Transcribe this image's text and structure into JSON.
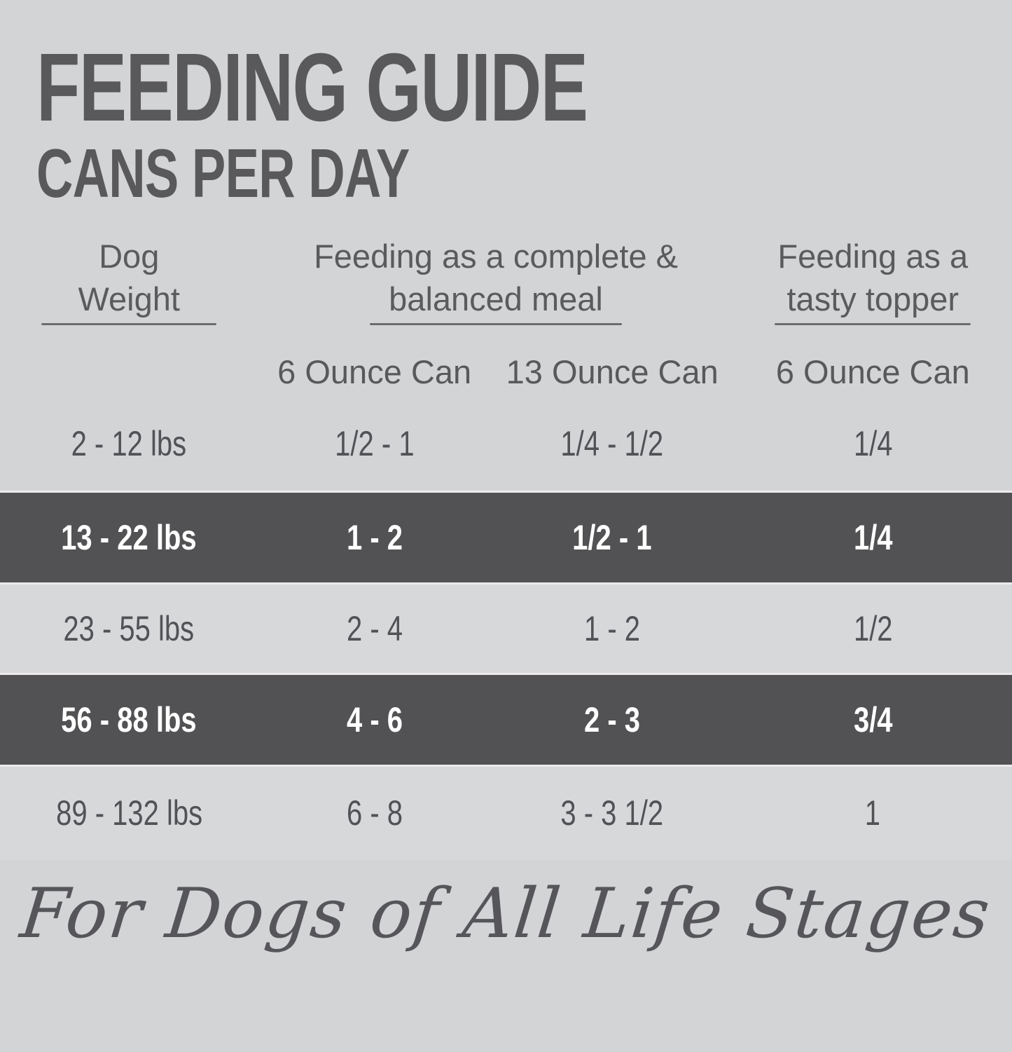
{
  "page": {
    "title": "FEEDING GUIDE",
    "subtitle": "CANS PER DAY",
    "footer_script": "For Dogs of All Life Stages"
  },
  "table": {
    "column_groups": [
      {
        "label": "Dog Weight",
        "lines": [
          "Dog",
          "Weight"
        ]
      },
      {
        "label": "Feeding as a complete & balanced meal",
        "lines": [
          "Feeding as a complete &",
          "balanced meal"
        ]
      },
      {
        "label": "Feeding as a tasty topper",
        "lines": [
          "Feeding as a",
          "tasty topper"
        ]
      }
    ],
    "sub_headers": [
      "6 Ounce Can",
      "13 Ounce Can",
      "6 Ounce Can"
    ],
    "rows": [
      {
        "weight": "2 - 12 lbs",
        "meal_6oz": "1/2 - 1",
        "meal_13oz": "1/4 - 1/2",
        "topper_6oz": "1/4",
        "highlighted": false
      },
      {
        "weight": "13 - 22 lbs",
        "meal_6oz": "1 - 2",
        "meal_13oz": "1/2 - 1",
        "topper_6oz": "1/4",
        "highlighted": true
      },
      {
        "weight": "23 - 55 lbs",
        "meal_6oz": "2 - 4",
        "meal_13oz": "1 - 2",
        "topper_6oz": "1/2",
        "highlighted": false
      },
      {
        "weight": "56 - 88 lbs",
        "meal_6oz": "4 - 6",
        "meal_13oz": "2 - 3",
        "topper_6oz": "3/4",
        "highlighted": true
      },
      {
        "weight": "89 - 132 lbs",
        "meal_6oz": "6 - 8",
        "meal_13oz": "3 - 3 1/2",
        "topper_6oz": "1",
        "highlighted": false
      }
    ]
  },
  "colors": {
    "page_background": "#d3d4d6",
    "highlight_row_background": "#525254",
    "highlight_row_text": "#ffffff",
    "heading_text": "#58595b",
    "row_separator_line": "#ebebec",
    "header_underline": "#6b6c6e"
  }
}
